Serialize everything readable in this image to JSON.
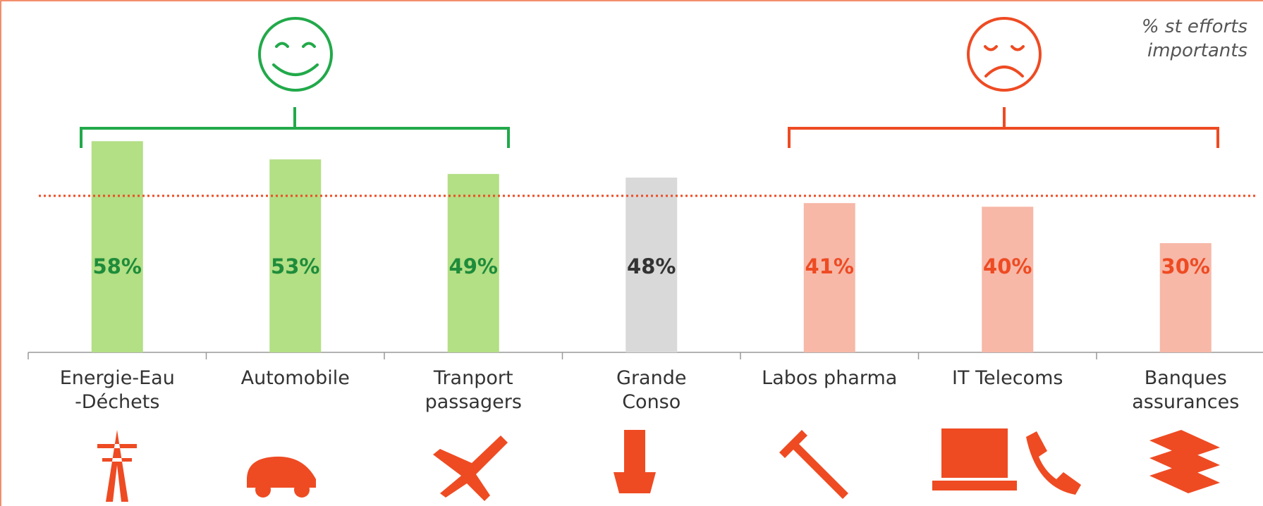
{
  "chart_data": {
    "type": "bar",
    "annotation": "% st efforts\nimportants",
    "categories": [
      "Energie-Eau\n-Déchets",
      "Automobile",
      "Tranport\npassagers",
      "Grande\nConso",
      "Labos pharma",
      "IT Telecoms",
      "Banques\nassurances"
    ],
    "values": [
      58,
      53,
      49,
      48,
      41,
      40,
      30
    ],
    "value_labels": [
      "58%",
      "53%",
      "49%",
      "48%",
      "41%",
      "40%",
      "30%"
    ],
    "colors": [
      "#b3df85",
      "#b3df85",
      "#b3df85",
      "#d9d9d9",
      "#f7b8a8",
      "#f7b8a8",
      "#f7b8a8"
    ],
    "label_colors": [
      "#1e8c3a",
      "#1e8c3a",
      "#1e8c3a",
      "#333333",
      "#ee4b23",
      "#ee4b23",
      "#ee4b23"
    ],
    "reference_line": 43,
    "ylim": [
      0,
      60
    ]
  }
}
